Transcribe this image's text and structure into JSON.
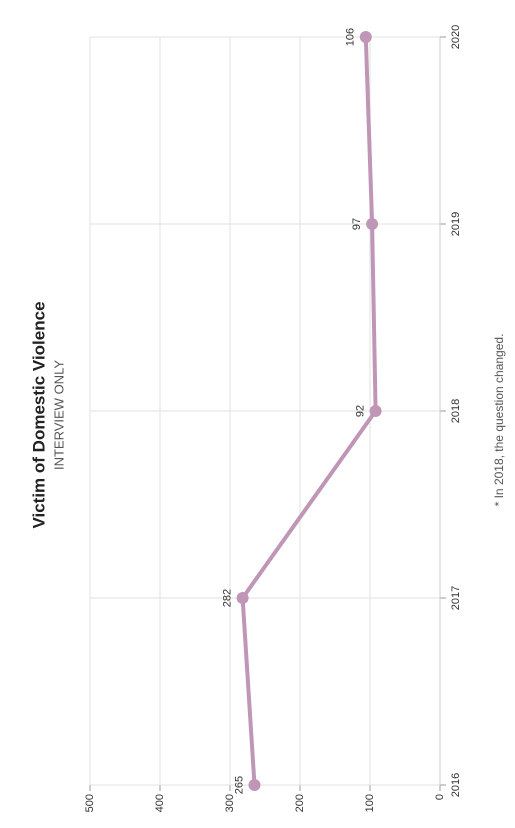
{
  "chart_data": {
    "type": "line",
    "title": "Victim of Domestic Violence",
    "subtitle": "INTERVIEW ONLY",
    "note": "* In 2018, the question changed.",
    "x": [
      2016,
      2017,
      2018,
      2019,
      2020
    ],
    "series": [
      {
        "name": "Victim of Domestic Violence",
        "color": "#c096b6",
        "values": [
          265,
          282,
          92,
          97,
          106
        ]
      }
    ],
    "xlim": [
      2016,
      2020
    ],
    "xticks": [
      2016,
      2017,
      2018,
      2019,
      2020
    ],
    "ylim": [
      0,
      500
    ],
    "yticks": [
      0,
      100,
      200,
      300,
      400,
      500
    ],
    "grid": true
  }
}
